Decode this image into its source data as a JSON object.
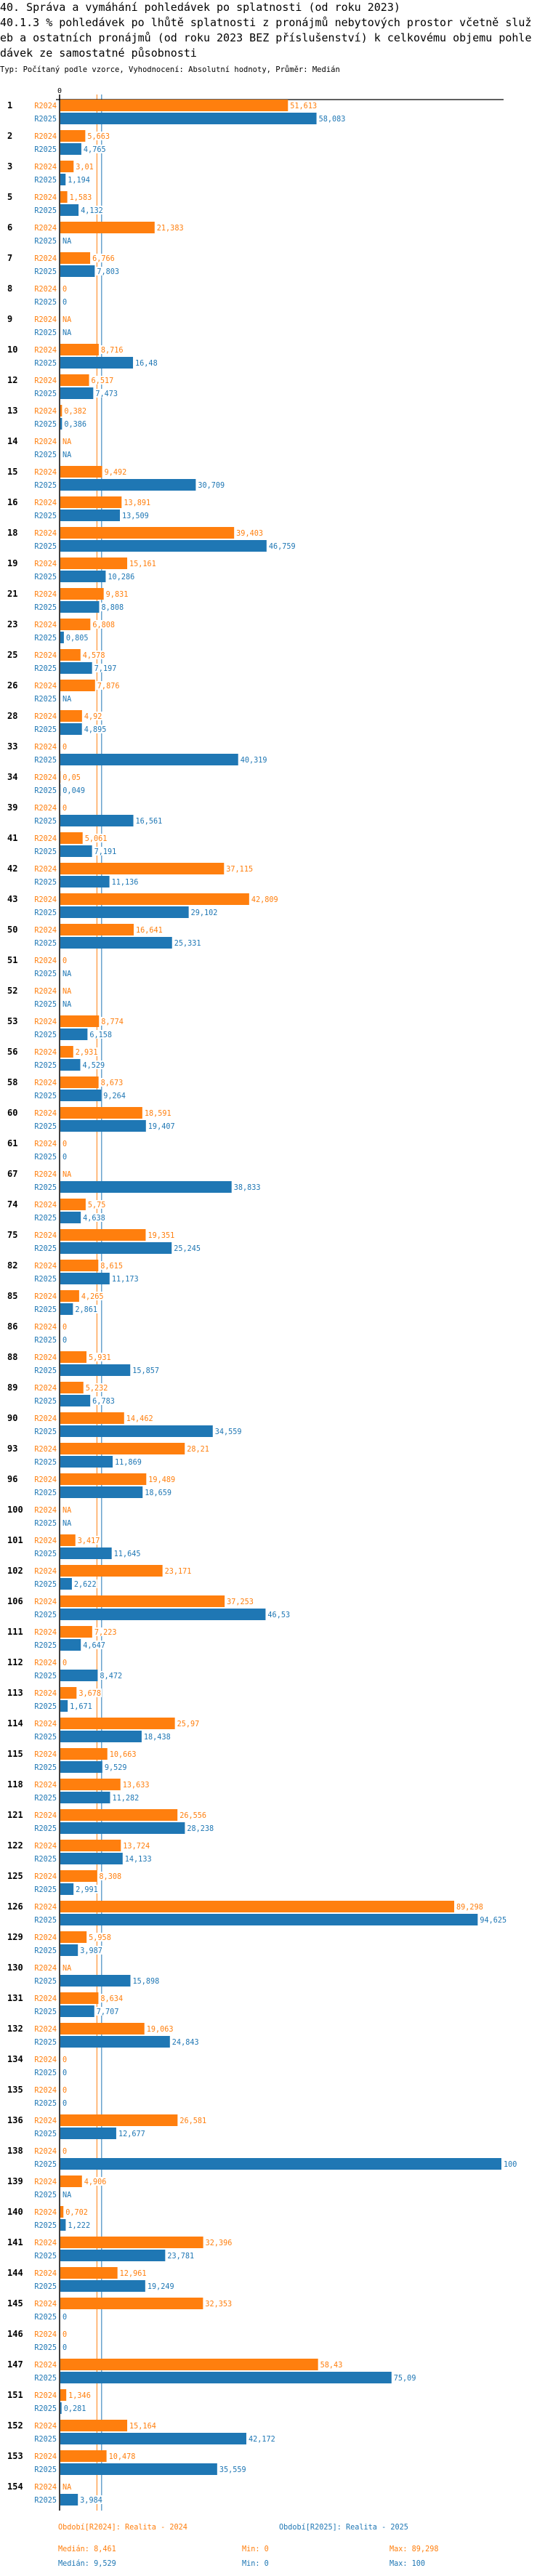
{
  "header": {
    "title_lines": [
      "40. Správa a vymáhání pohledávek po splatnosti (od roku 2023)",
      "40.1.3 % pohledávek po lhůtě splatnosti z pronájmů nebytových prostor včetně služ",
      "eb a ostatních pronájmů (od roku 2023 BEZ příslušenství) k celkovému objemu pohle",
      "dávek ze samostatné působnosti"
    ],
    "subtitle": "Typ: Počítaný podle vzorce, Vyhodnocení: Absolutní hodnoty, Průměr: Medián"
  },
  "colors": {
    "R2024": "#ff7f0e",
    "R2025": "#1f77b4",
    "axis": "#000000"
  },
  "chart_data": {
    "type": "bar",
    "orientation": "horizontal",
    "xlim": [
      0,
      100
    ],
    "x_tick_labels": [
      "0"
    ],
    "na_label": "NA",
    "categories": [
      "1",
      "2",
      "3",
      "5",
      "6",
      "7",
      "8",
      "9",
      "10",
      "12",
      "13",
      "14",
      "15",
      "16",
      "18",
      "19",
      "21",
      "23",
      "25",
      "26",
      "28",
      "33",
      "34",
      "39",
      "41",
      "42",
      "43",
      "50",
      "51",
      "52",
      "53",
      "56",
      "58",
      "60",
      "61",
      "67",
      "74",
      "75",
      "82",
      "85",
      "86",
      "88",
      "89",
      "90",
      "93",
      "96",
      "100",
      "101",
      "102",
      "106",
      "111",
      "112",
      "113",
      "114",
      "115",
      "118",
      "121",
      "122",
      "125",
      "126",
      "129",
      "130",
      "131",
      "132",
      "134",
      "135",
      "136",
      "138",
      "139",
      "140",
      "141",
      "144",
      "145",
      "146",
      "147",
      "151",
      "152",
      "153",
      "154"
    ],
    "series": [
      {
        "name": "R2024",
        "legend": "Období[R2024]: Realita - 2024",
        "values": [
          51.613,
          5.663,
          3.01,
          1.583,
          21.383,
          6.766,
          0,
          null,
          8.716,
          6.517,
          0.382,
          null,
          9.492,
          13.891,
          39.403,
          15.161,
          9.831,
          6.808,
          4.578,
          7.876,
          4.92,
          0,
          0.05,
          0,
          5.061,
          37.115,
          42.809,
          16.641,
          0,
          null,
          8.774,
          2.931,
          8.673,
          18.591,
          0,
          null,
          5.75,
          19.351,
          8.615,
          4.265,
          0,
          5.931,
          5.232,
          14.462,
          28.21,
          19.489,
          null,
          3.417,
          23.171,
          37.253,
          7.223,
          0,
          3.678,
          25.97,
          10.663,
          13.633,
          26.556,
          13.724,
          8.308,
          89.298,
          5.958,
          null,
          8.634,
          19.063,
          0,
          0,
          26.581,
          0,
          4.906,
          0.702,
          32.396,
          12.961,
          32.353,
          0,
          58.43,
          1.346,
          15.164,
          10.478,
          null
        ],
        "median": 8.461,
        "median_label": "Medián: 8,461",
        "min_label": "Min: 0",
        "max_label": "Max: 89,298"
      },
      {
        "name": "R2025",
        "legend": "Období[R2025]: Realita - 2025",
        "values": [
          58.083,
          4.765,
          1.194,
          4.132,
          null,
          7.803,
          0,
          null,
          16.48,
          7.473,
          0.386,
          null,
          30.709,
          13.509,
          46.759,
          10.286,
          8.808,
          0.805,
          7.197,
          null,
          4.895,
          40.319,
          0.049,
          16.561,
          7.191,
          11.136,
          29.102,
          25.331,
          null,
          null,
          6.158,
          4.529,
          9.264,
          19.407,
          0,
          38.833,
          4.638,
          25.245,
          11.173,
          2.861,
          0,
          15.857,
          6.783,
          34.559,
          11.869,
          18.659,
          null,
          11.645,
          2.622,
          46.53,
          4.647,
          8.472,
          1.671,
          18.438,
          9.529,
          11.282,
          28.238,
          14.133,
          2.991,
          94.625,
          3.987,
          15.898,
          7.707,
          24.843,
          0,
          0,
          12.677,
          100,
          null,
          1.222,
          23.781,
          19.249,
          0,
          0,
          75.09,
          0.281,
          42.172,
          35.559,
          3.984
        ],
        "median": 9.529,
        "median_label": "Medián: 9,529",
        "min_label": "Min: 0",
        "max_label": "Max: 100"
      }
    ]
  }
}
